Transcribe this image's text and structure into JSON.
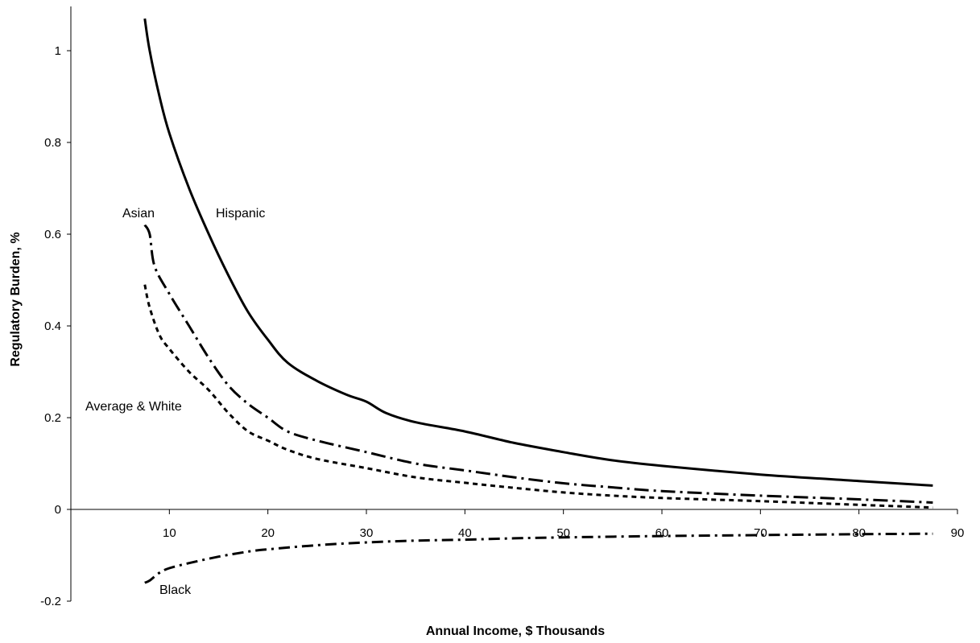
{
  "chart_data": {
    "type": "line",
    "xlabel": "Annual Income, $ Thousands",
    "ylabel": "Regulatory Burden, %",
    "xlim": [
      0,
      90
    ],
    "ylim": [
      -0.2,
      1.1
    ],
    "x_ticks": [
      "10",
      "20",
      "30",
      "40",
      "50",
      "60",
      "70",
      "80",
      "90"
    ],
    "y_ticks": [
      "-0.2",
      "0",
      "0.2",
      "0.4",
      "0.6",
      "0.8",
      "1"
    ],
    "grid": false,
    "legend": "none",
    "series": [
      {
        "name": "Hispanic",
        "line_style": "solid",
        "points": [
          [
            7.5,
            1.07
          ],
          [
            8,
            1.0
          ],
          [
            9,
            0.9
          ],
          [
            10,
            0.82
          ],
          [
            12,
            0.7
          ],
          [
            14,
            0.6
          ],
          [
            16,
            0.51
          ],
          [
            18,
            0.43
          ],
          [
            20,
            0.37
          ],
          [
            22,
            0.32
          ],
          [
            25,
            0.28
          ],
          [
            28,
            0.25
          ],
          [
            30,
            0.235
          ],
          [
            32,
            0.21
          ],
          [
            35,
            0.19
          ],
          [
            40,
            0.17
          ],
          [
            45,
            0.145
          ],
          [
            50,
            0.125
          ],
          [
            55,
            0.107
          ],
          [
            60,
            0.095
          ],
          [
            70,
            0.076
          ],
          [
            80,
            0.062
          ],
          [
            87.5,
            0.052
          ]
        ]
      },
      {
        "name": "Asian",
        "line_style": "long-dash-dot",
        "points": [
          [
            7.5,
            0.62
          ],
          [
            8,
            0.6
          ],
          [
            8.5,
            0.53
          ],
          [
            10,
            0.47
          ],
          [
            12,
            0.4
          ],
          [
            14,
            0.33
          ],
          [
            16,
            0.27
          ],
          [
            18,
            0.23
          ],
          [
            20,
            0.2
          ],
          [
            22,
            0.17
          ],
          [
            25,
            0.15
          ],
          [
            30,
            0.125
          ],
          [
            35,
            0.1
          ],
          [
            40,
            0.085
          ],
          [
            45,
            0.07
          ],
          [
            50,
            0.057
          ],
          [
            55,
            0.048
          ],
          [
            60,
            0.04
          ],
          [
            70,
            0.03
          ],
          [
            80,
            0.022
          ],
          [
            87.5,
            0.015
          ]
        ]
      },
      {
        "name": "Average & White",
        "line_style": "dotted",
        "points": [
          [
            7.5,
            0.49
          ],
          [
            8,
            0.44
          ],
          [
            9,
            0.38
          ],
          [
            10,
            0.35
          ],
          [
            12,
            0.3
          ],
          [
            14,
            0.26
          ],
          [
            16,
            0.21
          ],
          [
            18,
            0.17
          ],
          [
            20,
            0.15
          ],
          [
            22,
            0.13
          ],
          [
            25,
            0.11
          ],
          [
            30,
            0.09
          ],
          [
            35,
            0.07
          ],
          [
            40,
            0.058
          ],
          [
            45,
            0.047
          ],
          [
            50,
            0.037
          ],
          [
            55,
            0.03
          ],
          [
            60,
            0.025
          ],
          [
            70,
            0.018
          ],
          [
            80,
            0.01
          ],
          [
            87.5,
            0.004
          ]
        ]
      },
      {
        "name": "Black",
        "line_style": "dash-dot",
        "points": [
          [
            7.5,
            -0.16
          ],
          [
            8,
            -0.155
          ],
          [
            9,
            -0.138
          ],
          [
            10,
            -0.128
          ],
          [
            12,
            -0.117
          ],
          [
            15,
            -0.103
          ],
          [
            18,
            -0.092
          ],
          [
            20,
            -0.087
          ],
          [
            25,
            -0.078
          ],
          [
            30,
            -0.072
          ],
          [
            35,
            -0.068
          ],
          [
            40,
            -0.066
          ],
          [
            45,
            -0.063
          ],
          [
            50,
            -0.061
          ],
          [
            60,
            -0.058
          ],
          [
            70,
            -0.056
          ],
          [
            80,
            -0.054
          ],
          [
            87.5,
            -0.053
          ]
        ]
      }
    ],
    "annotations": [
      "Hispanic",
      "Asian",
      "Average & White",
      "Black"
    ]
  }
}
